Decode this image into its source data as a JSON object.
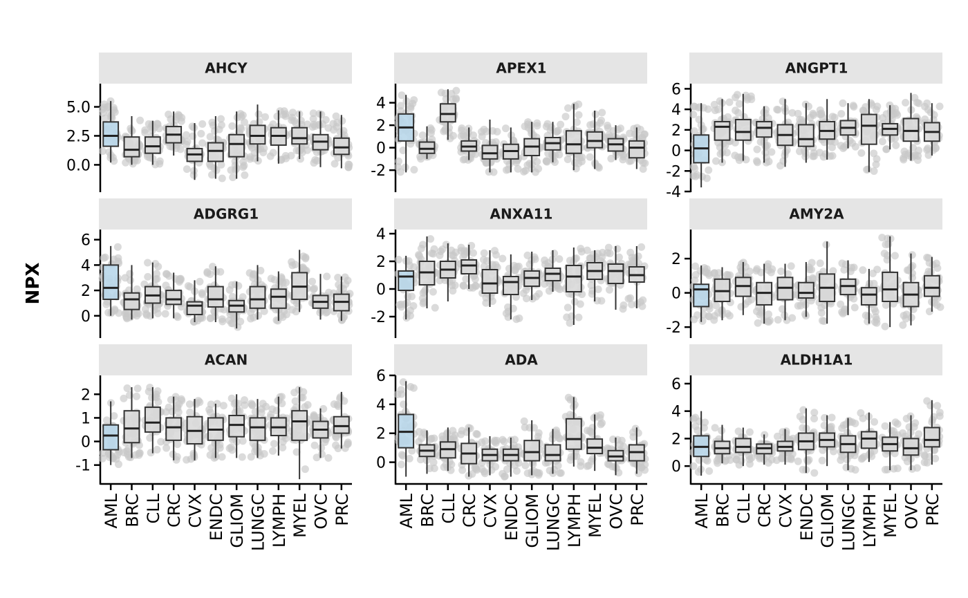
{
  "ylabel": "NPX",
  "colors": {
    "highlight_fill": "#b9d7ea",
    "highlight_points": "#a9cfe8",
    "box_fill": "#d9d9d9",
    "points": "#c8c8c8",
    "strip": "#e5e5e5"
  },
  "categories": [
    "AML",
    "BRC",
    "CLL",
    "CRC",
    "CVX",
    "ENDC",
    "GLIOM",
    "LUNGC",
    "LYMPH",
    "MYEL",
    "OVC",
    "PRC"
  ],
  "highlight_category": "AML",
  "chart_data": [
    {
      "type": "boxplot",
      "title": "AHCY",
      "ylim": [
        -2.3,
        7.0
      ],
      "yticks": [
        0,
        2.5,
        5
      ],
      "ytick_labels": [
        "0.0",
        "2.5",
        "5.0"
      ],
      "boxes": [
        {
          "min": 0.2,
          "q1": 1.6,
          "median": 2.5,
          "q3": 3.7,
          "max": 5.5
        },
        {
          "min": 0.0,
          "q1": 0.7,
          "median": 1.3,
          "q3": 2.4,
          "max": 4.2
        },
        {
          "min": 0.0,
          "q1": 1.0,
          "median": 1.6,
          "q3": 2.4,
          "max": 3.8
        },
        {
          "min": 0.8,
          "q1": 1.9,
          "median": 2.6,
          "q3": 3.3,
          "max": 4.6
        },
        {
          "min": -1.3,
          "q1": 0.3,
          "median": 0.9,
          "q3": 1.4,
          "max": 3.6
        },
        {
          "min": -1.2,
          "q1": 0.3,
          "median": 1.2,
          "q3": 1.9,
          "max": 4.2
        },
        {
          "min": -1.2,
          "q1": 0.7,
          "median": 1.8,
          "q3": 2.6,
          "max": 4.6
        },
        {
          "min": 0.3,
          "q1": 1.8,
          "median": 2.5,
          "q3": 3.4,
          "max": 5.2
        },
        {
          "min": 0.1,
          "q1": 1.7,
          "median": 2.5,
          "q3": 3.2,
          "max": 4.7
        },
        {
          "min": 0.5,
          "q1": 1.8,
          "median": 2.3,
          "q3": 3.2,
          "max": 4.6
        },
        {
          "min": -0.2,
          "q1": 1.3,
          "median": 2.0,
          "q3": 2.6,
          "max": 4.6
        },
        {
          "min": -0.3,
          "q1": 0.9,
          "median": 1.5,
          "q3": 2.3,
          "max": 4.3
        }
      ]
    },
    {
      "type": "boxplot",
      "title": "APEX1",
      "ylim": [
        -3.9,
        5.7
      ],
      "yticks": [
        -2,
        0,
        2,
        4
      ],
      "ytick_labels": [
        "-2",
        "0",
        "2",
        "4"
      ],
      "boxes": [
        {
          "min": -2.2,
          "q1": 0.6,
          "median": 1.8,
          "q3": 3.0,
          "max": 4.7
        },
        {
          "min": -1.0,
          "q1": -0.5,
          "median": -0.1,
          "q3": 0.5,
          "max": 1.9
        },
        {
          "min": 0.7,
          "q1": 2.3,
          "median": 3.0,
          "q3": 3.9,
          "max": 5.2
        },
        {
          "min": -1.1,
          "q1": -0.3,
          "median": 0.1,
          "q3": 0.6,
          "max": 1.8
        },
        {
          "min": -2.2,
          "q1": -1.0,
          "median": -0.5,
          "q3": 0.2,
          "max": 2.5
        },
        {
          "min": -2.2,
          "q1": -1.0,
          "median": -0.3,
          "q3": 0.3,
          "max": 1.8
        },
        {
          "min": -2.2,
          "q1": -0.7,
          "median": 0.1,
          "q3": 0.8,
          "max": 2.3
        },
        {
          "min": -1.3,
          "q1": -0.2,
          "median": 0.4,
          "q3": 0.9,
          "max": 2.3
        },
        {
          "min": -2.0,
          "q1": -0.5,
          "median": 0.3,
          "q3": 1.5,
          "max": 3.9
        },
        {
          "min": -1.9,
          "q1": 0.0,
          "median": 0.6,
          "q3": 1.4,
          "max": 3.3
        },
        {
          "min": -1.1,
          "q1": -0.3,
          "median": 0.3,
          "q3": 0.8,
          "max": 2.0
        },
        {
          "min": -1.9,
          "q1": -0.9,
          "median": 0.0,
          "q3": 0.6,
          "max": 1.8
        }
      ]
    },
    {
      "type": "boxplot",
      "title": "ANGPT1",
      "ylim": [
        -4.0,
        6.5
      ],
      "yticks": [
        -4,
        -2,
        0,
        2,
        4,
        6
      ],
      "ytick_labels": [
        "-4",
        "-2",
        "0",
        "2",
        "4",
        "6"
      ],
      "boxes": [
        {
          "min": -3.6,
          "q1": -1.2,
          "median": 0.2,
          "q3": 1.5,
          "max": 4.6
        },
        {
          "min": -1.2,
          "q1": 1.0,
          "median": 2.3,
          "q3": 2.8,
          "max": 5.0
        },
        {
          "min": -1.0,
          "q1": 1.0,
          "median": 1.8,
          "q3": 3.0,
          "max": 5.5
        },
        {
          "min": -1.2,
          "q1": 1.3,
          "median": 2.2,
          "q3": 2.8,
          "max": 4.3
        },
        {
          "min": -1.6,
          "q1": 0.5,
          "median": 1.5,
          "q3": 2.5,
          "max": 5.0
        },
        {
          "min": -1.2,
          "q1": 0.4,
          "median": 1.1,
          "q3": 2.5,
          "max": 4.6
        },
        {
          "min": -0.9,
          "q1": 1.1,
          "median": 1.9,
          "q3": 2.8,
          "max": 5.0
        },
        {
          "min": 0.2,
          "q1": 1.5,
          "median": 2.2,
          "q3": 2.9,
          "max": 4.6
        },
        {
          "min": -2.1,
          "q1": 0.6,
          "median": 2.4,
          "q3": 3.5,
          "max": 5.0
        },
        {
          "min": 0.1,
          "q1": 1.5,
          "median": 2.1,
          "q3": 2.6,
          "max": 4.4
        },
        {
          "min": -1.0,
          "q1": 0.9,
          "median": 1.9,
          "q3": 3.1,
          "max": 5.6
        },
        {
          "min": -0.5,
          "q1": 0.9,
          "median": 1.8,
          "q3": 2.7,
          "max": 4.6
        }
      ]
    },
    {
      "type": "boxplot",
      "title": "ADGRG1",
      "ylim": [
        -1.7,
        6.8
      ],
      "yticks": [
        0,
        2,
        4,
        6
      ],
      "ytick_labels": [
        "0",
        "2",
        "4",
        "6"
      ],
      "boxes": [
        {
          "min": 0.0,
          "q1": 1.3,
          "median": 2.2,
          "q3": 4.0,
          "max": 5.5
        },
        {
          "min": -0.3,
          "q1": 0.5,
          "median": 1.3,
          "q3": 1.8,
          "max": 4.0
        },
        {
          "min": -0.2,
          "q1": 1.0,
          "median": 1.6,
          "q3": 2.3,
          "max": 4.2
        },
        {
          "min": -0.2,
          "q1": 0.9,
          "median": 1.3,
          "q3": 2.0,
          "max": 3.4
        },
        {
          "min": -0.5,
          "q1": 0.1,
          "median": 0.8,
          "q3": 1.1,
          "max": 2.8
        },
        {
          "min": -0.5,
          "q1": 0.7,
          "median": 1.3,
          "q3": 2.3,
          "max": 3.9
        },
        {
          "min": -1.0,
          "q1": 0.3,
          "median": 0.8,
          "q3": 1.2,
          "max": 2.7
        },
        {
          "min": -0.3,
          "q1": 0.6,
          "median": 1.3,
          "q3": 2.3,
          "max": 4.0
        },
        {
          "min": -0.4,
          "q1": 0.6,
          "median": 1.5,
          "q3": 2.1,
          "max": 3.5
        },
        {
          "min": 0.3,
          "q1": 1.3,
          "median": 2.3,
          "q3": 3.4,
          "max": 5.2
        },
        {
          "min": -0.3,
          "q1": 0.6,
          "median": 1.1,
          "q3": 1.6,
          "max": 3.3
        },
        {
          "min": -0.4,
          "q1": 0.4,
          "median": 1.1,
          "q3": 1.7,
          "max": 3.1
        }
      ]
    },
    {
      "type": "boxplot",
      "title": "ANXA11",
      "ylim": [
        -3.5,
        4.3
      ],
      "yticks": [
        -2,
        0,
        2,
        4
      ],
      "ytick_labels": [
        "-2",
        "0",
        "2",
        "4"
      ],
      "boxes": [
        {
          "min": -2.2,
          "q1": -0.1,
          "median": 0.9,
          "q3": 1.3,
          "max": 2.4
        },
        {
          "min": -1.4,
          "q1": 0.3,
          "median": 1.2,
          "q3": 2.0,
          "max": 3.8
        },
        {
          "min": -0.9,
          "q1": 0.8,
          "median": 1.4,
          "q3": 2.0,
          "max": 3.3
        },
        {
          "min": 0.0,
          "q1": 1.1,
          "median": 1.7,
          "q3": 2.1,
          "max": 3.2
        },
        {
          "min": -1.3,
          "q1": -0.3,
          "median": 0.4,
          "q3": 1.4,
          "max": 2.8
        },
        {
          "min": -2.2,
          "q1": -0.4,
          "median": 0.5,
          "q3": 0.9,
          "max": 2.5
        },
        {
          "min": -0.8,
          "q1": 0.2,
          "median": 0.8,
          "q3": 1.3,
          "max": 2.7
        },
        {
          "min": -0.2,
          "q1": 0.6,
          "median": 1.1,
          "q3": 1.5,
          "max": 2.8
        },
        {
          "min": -2.6,
          "q1": -0.2,
          "median": 0.9,
          "q3": 1.7,
          "max": 3.0
        },
        {
          "min": -0.9,
          "q1": 0.7,
          "median": 1.3,
          "q3": 1.9,
          "max": 2.8
        },
        {
          "min": -1.5,
          "q1": 0.4,
          "median": 1.3,
          "q3": 1.8,
          "max": 3.1
        },
        {
          "min": -1.4,
          "q1": 0.5,
          "median": 1.0,
          "q3": 1.6,
          "max": 3.1
        }
      ]
    },
    {
      "type": "boxplot",
      "title": "AMY2A",
      "ylim": [
        -2.6,
        3.7
      ],
      "yticks": [
        -2,
        0,
        2
      ],
      "ytick_labels": [
        "-2",
        "0",
        "2"
      ],
      "boxes": [
        {
          "min": -1.7,
          "q1": -0.8,
          "median": 0.2,
          "q3": 0.5,
          "max": 1.6
        },
        {
          "min": -1.6,
          "q1": -0.5,
          "median": 0.1,
          "q3": 0.8,
          "max": 1.5
        },
        {
          "min": -1.3,
          "q1": -0.2,
          "median": 0.4,
          "q3": 0.9,
          "max": 1.8
        },
        {
          "min": -1.8,
          "q1": -0.7,
          "median": 0.0,
          "q3": 0.6,
          "max": 1.7
        },
        {
          "min": -1.6,
          "q1": -0.4,
          "median": 0.3,
          "q3": 0.9,
          "max": 1.7
        },
        {
          "min": -1.4,
          "q1": -0.3,
          "median": 0.0,
          "q3": 0.6,
          "max": 1.8
        },
        {
          "min": -1.8,
          "q1": -0.5,
          "median": 0.3,
          "q3": 1.1,
          "max": 3.0
        },
        {
          "min": -1.3,
          "q1": -0.1,
          "median": 0.4,
          "q3": 0.8,
          "max": 1.9
        },
        {
          "min": -1.8,
          "q1": -0.7,
          "median": -0.1,
          "q3": 0.3,
          "max": 1.4
        },
        {
          "min": -2.0,
          "q1": -0.5,
          "median": 0.2,
          "q3": 1.2,
          "max": 3.3
        },
        {
          "min": -1.9,
          "q1": -0.8,
          "median": -0.1,
          "q3": 0.6,
          "max": 2.3
        },
        {
          "min": -1.1,
          "q1": -0.2,
          "median": 0.3,
          "q3": 1.0,
          "max": 2.1
        }
      ]
    },
    {
      "type": "boxplot",
      "title": "ACAN",
      "ylim": [
        -1.8,
        2.8
      ],
      "yticks": [
        -1,
        0,
        1,
        2
      ],
      "ytick_labels": [
        "-1",
        "0",
        "1",
        "2"
      ],
      "boxes": [
        {
          "min": -1.0,
          "q1": -0.35,
          "median": 0.25,
          "q3": 0.7,
          "max": 1.7
        },
        {
          "min": -0.7,
          "q1": -0.05,
          "median": 0.55,
          "q3": 1.3,
          "max": 2.3
        },
        {
          "min": -0.5,
          "q1": 0.4,
          "median": 0.8,
          "q3": 1.45,
          "max": 2.3
        },
        {
          "min": -0.8,
          "q1": 0.05,
          "median": 0.6,
          "q3": 1.0,
          "max": 1.9
        },
        {
          "min": -0.8,
          "q1": -0.1,
          "median": 0.45,
          "q3": 1.05,
          "max": 1.8
        },
        {
          "min": -0.7,
          "q1": 0.05,
          "median": 0.5,
          "q3": 1.0,
          "max": 1.6
        },
        {
          "min": -0.7,
          "q1": 0.2,
          "median": 0.7,
          "q3": 1.1,
          "max": 2.0
        },
        {
          "min": -0.7,
          "q1": 0.05,
          "median": 0.6,
          "q3": 1.0,
          "max": 1.8
        },
        {
          "min": -0.6,
          "q1": 0.25,
          "median": 0.6,
          "q3": 1.0,
          "max": 1.9
        },
        {
          "min": -1.6,
          "q1": 0.05,
          "median": 0.85,
          "q3": 1.3,
          "max": 2.3
        },
        {
          "min": -0.7,
          "q1": 0.15,
          "median": 0.5,
          "q3": 0.85,
          "max": 1.4
        },
        {
          "min": -0.3,
          "q1": 0.35,
          "median": 0.65,
          "q3": 1.05,
          "max": 2.1
        }
      ]
    },
    {
      "type": "boxplot",
      "title": "ADA",
      "ylim": [
        -1.5,
        6.0
      ],
      "yticks": [
        0,
        2,
        4,
        6
      ],
      "ytick_labels": [
        "0",
        "2",
        "4",
        "6"
      ],
      "boxes": [
        {
          "min": -1.0,
          "q1": 1.0,
          "median": 2.1,
          "q3": 3.3,
          "max": 5.6
        },
        {
          "min": -0.8,
          "q1": 0.4,
          "median": 0.8,
          "q3": 1.2,
          "max": 2.2
        },
        {
          "min": -0.6,
          "q1": 0.3,
          "median": 0.9,
          "q3": 1.4,
          "max": 2.4
        },
        {
          "min": -1.0,
          "q1": -0.1,
          "median": 0.6,
          "q3": 1.3,
          "max": 2.4
        },
        {
          "min": -0.9,
          "q1": 0.1,
          "median": 0.5,
          "q3": 0.9,
          "max": 1.8
        },
        {
          "min": -1.0,
          "q1": 0.1,
          "median": 0.5,
          "q3": 0.9,
          "max": 1.7
        },
        {
          "min": -0.9,
          "q1": 0.1,
          "median": 0.7,
          "q3": 1.5,
          "max": 2.9
        },
        {
          "min": -0.8,
          "q1": 0.1,
          "median": 0.5,
          "q3": 1.2,
          "max": 2.3
        },
        {
          "min": -0.3,
          "q1": 0.9,
          "median": 1.6,
          "q3": 3.0,
          "max": 4.5
        },
        {
          "min": -0.6,
          "q1": 0.6,
          "median": 1.0,
          "q3": 1.6,
          "max": 3.3
        },
        {
          "min": -0.9,
          "q1": 0.1,
          "median": 0.4,
          "q3": 0.8,
          "max": 1.7
        },
        {
          "min": -0.8,
          "q1": 0.1,
          "median": 0.7,
          "q3": 1.2,
          "max": 2.4
        }
      ]
    },
    {
      "type": "boxplot",
      "title": "ALDH1A1",
      "ylim": [
        -1.3,
        6.6
      ],
      "yticks": [
        0,
        2,
        4,
        6
      ],
      "ytick_labels": [
        "0",
        "2",
        "4",
        "6"
      ],
      "boxes": [
        {
          "min": -0.7,
          "q1": 0.7,
          "median": 1.4,
          "q3": 2.2,
          "max": 4.0
        },
        {
          "min": 0.2,
          "q1": 0.9,
          "median": 1.3,
          "q3": 1.8,
          "max": 3.0
        },
        {
          "min": 0.0,
          "q1": 1.0,
          "median": 1.4,
          "q3": 2.0,
          "max": 2.8
        },
        {
          "min": 0.1,
          "q1": 0.9,
          "median": 1.3,
          "q3": 1.6,
          "max": 2.3
        },
        {
          "min": 0.1,
          "q1": 1.1,
          "median": 1.4,
          "q3": 1.8,
          "max": 2.7
        },
        {
          "min": -0.5,
          "q1": 1.2,
          "median": 1.8,
          "q3": 2.4,
          "max": 4.2
        },
        {
          "min": 0.0,
          "q1": 1.4,
          "median": 1.9,
          "q3": 2.4,
          "max": 3.7
        },
        {
          "min": -0.3,
          "q1": 1.0,
          "median": 1.6,
          "q3": 2.2,
          "max": 3.5
        },
        {
          "min": 0.3,
          "q1": 1.3,
          "median": 2.0,
          "q3": 2.5,
          "max": 3.9
        },
        {
          "min": -0.3,
          "q1": 1.1,
          "median": 1.6,
          "q3": 2.1,
          "max": 3.2
        },
        {
          "min": -0.3,
          "q1": 0.8,
          "median": 1.3,
          "q3": 2.0,
          "max": 3.7
        },
        {
          "min": 0.1,
          "q1": 1.4,
          "median": 1.9,
          "q3": 2.8,
          "max": 4.8
        }
      ]
    }
  ]
}
